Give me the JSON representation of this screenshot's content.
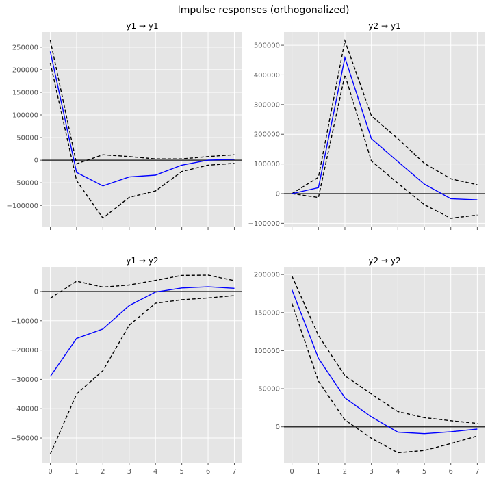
{
  "chart_data": {
    "type": "line",
    "title": "Impulse responses (orthogonalized)",
    "x": [
      0,
      1,
      2,
      3,
      4,
      5,
      6,
      7
    ],
    "colors": {
      "response": "#0000ff",
      "bands": "#000000",
      "zero_line": "#333333",
      "axes_bg": "#e5e5e5",
      "grid": "#ffffff"
    },
    "panels": [
      {
        "title": "y1 → y1",
        "ylim": [
          -148000,
          283000
        ],
        "yticks": [
          -100000,
          -50000,
          0,
          50000,
          100000,
          150000,
          200000,
          250000
        ],
        "show_xticklabels": false,
        "response": [
          240000,
          -27000,
          -57000,
          -37000,
          -33000,
          -11000,
          0,
          2000
        ],
        "upper": [
          265000,
          -8000,
          12000,
          8000,
          3000,
          3000,
          8000,
          12000
        ],
        "lower": [
          215000,
          -45000,
          -128000,
          -82000,
          -68000,
          -25000,
          -11000,
          -7000
        ]
      },
      {
        "title": "y2 → y1",
        "ylim": [
          -113000,
          544000
        ],
        "yticks": [
          -100000,
          0,
          100000,
          200000,
          300000,
          400000,
          500000
        ],
        "show_xticklabels": false,
        "response": [
          0,
          20000,
          458000,
          185000,
          108000,
          32000,
          -17000,
          -21000
        ],
        "upper": [
          0,
          55000,
          515000,
          262000,
          185000,
          102000,
          50000,
          30000
        ],
        "lower": [
          0,
          -13000,
          400000,
          110000,
          35000,
          -37000,
          -83000,
          -72000
        ]
      },
      {
        "title": "y1 → y2",
        "ylim": [
          -58400,
          8400
        ],
        "yticks": [
          -50000,
          -40000,
          -30000,
          -20000,
          -10000,
          0
        ],
        "show_xticklabels": true,
        "response": [
          -29000,
          -16000,
          -12800,
          -4800,
          -200,
          1200,
          1600,
          1100
        ],
        "upper": [
          -2300,
          3500,
          1500,
          2200,
          3800,
          5500,
          5600,
          3700
        ],
        "lower": [
          -55500,
          -35000,
          -27000,
          -11500,
          -4000,
          -2800,
          -2200,
          -1400
        ]
      },
      {
        "title": "y2 → y2",
        "ylim": [
          -47000,
          210000
        ],
        "yticks": [
          0,
          50000,
          100000,
          150000,
          200000
        ],
        "show_xticklabels": true,
        "response": [
          180000,
          90000,
          38000,
          13000,
          -7000,
          -9000,
          -6500,
          -3000
        ],
        "upper": [
          198000,
          120000,
          67000,
          43000,
          20000,
          12000,
          8000,
          4500
        ],
        "lower": [
          162000,
          60000,
          9000,
          -15000,
          -34000,
          -31000,
          -22000,
          -12000
        ]
      }
    ]
  }
}
